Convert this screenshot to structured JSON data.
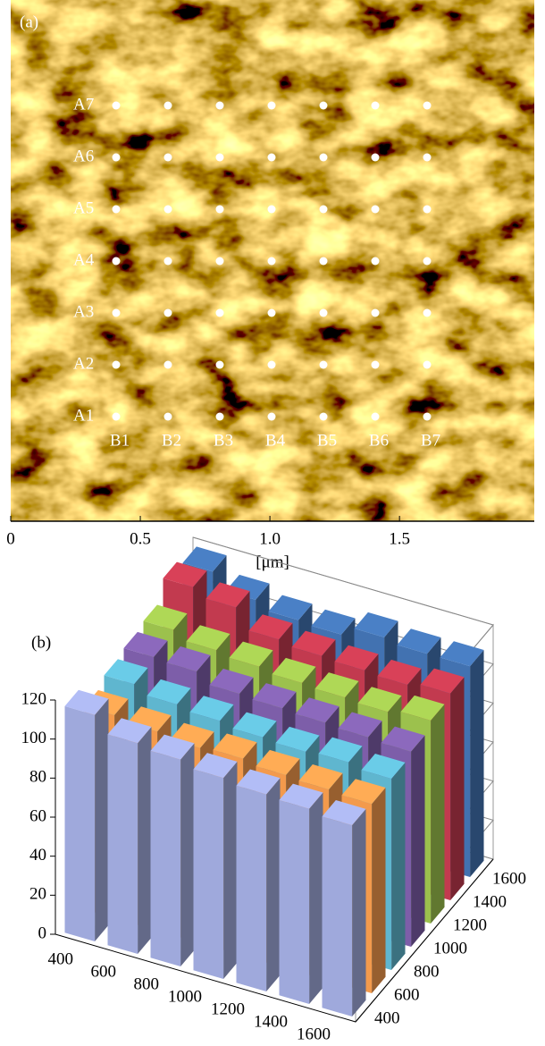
{
  "panel_a": {
    "label": "(a)",
    "row_labels": [
      "A1",
      "A2",
      "A3",
      "A4",
      "A5",
      "A6",
      "A7"
    ],
    "col_labels": [
      "B1",
      "B2",
      "B3",
      "B4",
      "B5",
      "B6",
      "B7"
    ],
    "xlim": [
      0,
      2.02
    ],
    "xticks": [
      0,
      0.5,
      {
        "value": 1,
        "label": "1.0"
      },
      1.5
    ],
    "xlabel": "[μm]"
  },
  "chart_data": {
    "type": "bar3d",
    "label": "(b)",
    "x": [
      400,
      600,
      800,
      1000,
      1200,
      1400,
      1600
    ],
    "y": [
      400,
      600,
      800,
      1000,
      1200,
      1400,
      1600
    ],
    "zlim": [
      0,
      120
    ],
    "zticks": [
      0,
      20,
      40,
      60,
      80,
      100,
      120
    ],
    "grid": true,
    "series": [
      {
        "color": "#9fa9dc",
        "values": [
          116,
          108,
          106,
          103,
          101,
          100,
          98
        ]
      },
      {
        "color": "#f39a4c",
        "values": [
          104,
          102,
          100,
          101,
          99,
          98,
          97
        ]
      },
      {
        "color": "#5fb6cf",
        "values": [
          108,
          104,
          102,
          100,
          99,
          100,
          98
        ]
      },
      {
        "color": "#7d5ea9",
        "values": [
          110,
          109,
          104,
          103,
          102,
          101,
          100
        ]
      },
      {
        "color": "#9cc14d",
        "values": [
          112,
          108,
          106,
          104,
          103,
          102,
          104
        ]
      },
      {
        "color": "#c23a4f",
        "values": [
          122,
          118,
          108,
          106,
          105,
          104,
          106
        ]
      },
      {
        "color": "#4272b1",
        "values": [
          118,
          110,
          106,
          105,
          110,
          108,
          108
        ]
      }
    ]
  }
}
